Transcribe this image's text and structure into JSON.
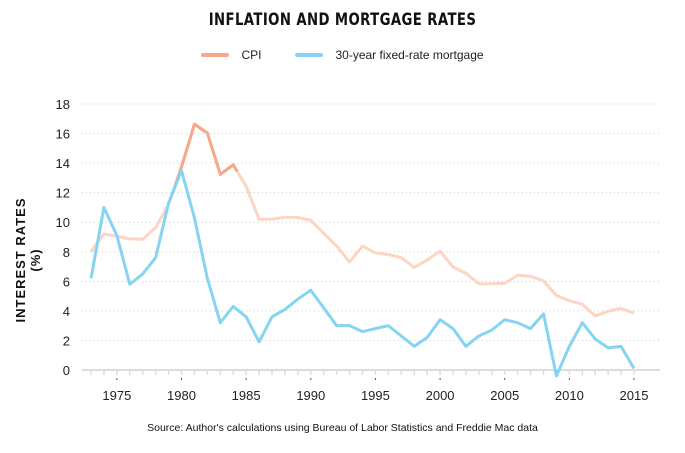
{
  "chart_data": {
    "type": "line",
    "title": "INFLATION AND MORTGAGE RATES",
    "ylabel": "INTEREST RATES (%)",
    "xlabel": "",
    "source": "Source: Author's calculations using Bureau of Labor Statistics and Freddie Mac data",
    "legend_position": "top",
    "grid": true,
    "ylim": [
      0,
      18
    ],
    "xlim": [
      1973,
      2015
    ],
    "y_ticks": [
      "0",
      "2",
      "4",
      "6",
      "8",
      "10",
      "12",
      "14",
      "16",
      "18"
    ],
    "x_ticks": [
      "1975",
      "1980",
      "1985",
      "1990",
      "1995",
      "2000",
      "2005",
      "2010",
      "2015"
    ],
    "x": [
      1973,
      1974,
      1975,
      1976,
      1977,
      1978,
      1979,
      1980,
      1981,
      1982,
      1983,
      1984,
      1985,
      1986,
      1987,
      1988,
      1989,
      1990,
      1991,
      1992,
      1993,
      1994,
      1995,
      1996,
      1997,
      1998,
      1999,
      2000,
      2001,
      2002,
      2003,
      2004,
      2005,
      2006,
      2007,
      2008,
      2009,
      2010,
      2011,
      2012,
      2013,
      2014,
      2015
    ],
    "highlight_range": [
      1979.5,
      1984.3
    ],
    "series": [
      {
        "name": "CPI",
        "color": "#f5a88a",
        "light_color": "#fcd5c4",
        "values": [
          8.0,
          9.2,
          9.05,
          8.87,
          8.85,
          9.64,
          11.2,
          13.74,
          16.63,
          16.04,
          13.24,
          13.88,
          12.43,
          10.19,
          10.21,
          10.34,
          10.32,
          10.13,
          9.25,
          8.39,
          7.31,
          8.38,
          7.93,
          7.81,
          7.6,
          6.94,
          7.44,
          8.05,
          6.97,
          6.54,
          5.83,
          5.84,
          5.87,
          6.41,
          6.34,
          6.03,
          5.04,
          4.69,
          4.45,
          3.66,
          3.98,
          4.17,
          3.85
        ]
      },
      {
        "name": "30-year fixed-rate mortgage",
        "color": "#86d4f3",
        "values": [
          6.2,
          11.0,
          9.1,
          5.8,
          6.5,
          7.6,
          11.3,
          13.5,
          10.3,
          6.2,
          3.2,
          4.3,
          3.6,
          1.9,
          3.6,
          4.1,
          4.8,
          5.4,
          4.2,
          3.0,
          3.0,
          2.6,
          2.8,
          3.0,
          2.3,
          1.6,
          2.2,
          3.4,
          2.8,
          1.6,
          2.3,
          2.7,
          3.4,
          3.2,
          2.8,
          3.8,
          -0.4,
          1.6,
          3.2,
          2.1,
          1.5,
          1.6,
          0.1
        ]
      }
    ]
  }
}
